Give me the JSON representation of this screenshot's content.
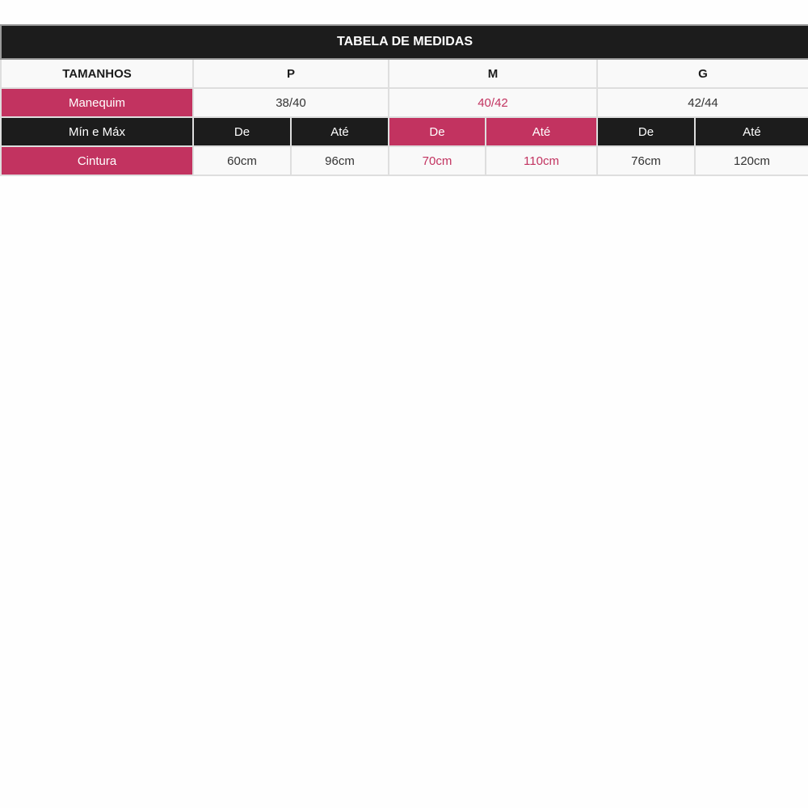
{
  "title": "TABELA DE MEDIDAS",
  "sizes_label": "TAMANHOS",
  "sizes": [
    "P",
    "M",
    "G"
  ],
  "mannequin_label": "Manequim",
  "mannequin": [
    "38/40",
    "40/42",
    "42/44"
  ],
  "range_label": "Mín e Máx",
  "range_headers": [
    "De",
    "Até",
    "De",
    "Até",
    "De",
    "Até"
  ],
  "waist_label": "Cintura",
  "waist": [
    "60cm",
    "96cm",
    "70cm",
    "110cm",
    "76cm",
    "120cm"
  ],
  "colors": {
    "dark": "#1c1c1c",
    "accent": "#c23360",
    "cell": "#f9f9f9"
  }
}
